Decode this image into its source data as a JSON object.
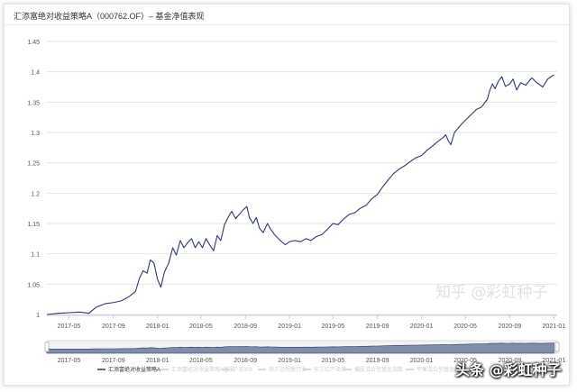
{
  "window": {
    "title": "汇添富绝对收益策略A（000762.OF）– 基金净值表现"
  },
  "colors": {
    "line": "#2d3b6b",
    "grid": "#e6e6e6",
    "axis": "#999999",
    "navigator_fill": "#5a6b8c",
    "navigator_bg": "#f2f2f2"
  },
  "chart_data": {
    "type": "line",
    "title": "汇添富绝对收益策略A（000762.OF）– 基金净值表现",
    "xlabel": "",
    "ylabel": "",
    "grid": "horizontal",
    "ylim": [
      1,
      1.45
    ],
    "yticks": [
      "1",
      "1.05",
      "1.1",
      "1.15",
      "1.2",
      "1.25",
      "1.3",
      "1.35",
      "1.4",
      "1.45"
    ],
    "xticks": [
      "2017-05",
      "2017-09",
      "2018-01",
      "2018-05",
      "2018-09",
      "2019-01",
      "2019-05",
      "2019-09",
      "2020-01",
      "2020-05",
      "2020-09",
      "2021-01"
    ],
    "legend_position": "bottom",
    "series": [
      {
        "name": "汇添富绝对收益策略A",
        "color": "#2d3b6b",
        "points": [
          [
            "2017-03-01",
            1.0
          ],
          [
            "2017-04-01",
            1.002
          ],
          [
            "2017-05-01",
            1.003
          ],
          [
            "2017-06-01",
            1.004
          ],
          [
            "2017-06-25",
            1.002
          ],
          [
            "2017-07-15",
            1.012
          ],
          [
            "2017-08-10",
            1.018
          ],
          [
            "2017-09-05",
            1.02
          ],
          [
            "2017-09-25",
            1.023
          ],
          [
            "2017-10-15",
            1.03
          ],
          [
            "2017-11-01",
            1.038
          ],
          [
            "2017-11-12",
            1.06
          ],
          [
            "2017-11-22",
            1.072
          ],
          [
            "2017-12-03",
            1.068
          ],
          [
            "2017-12-12",
            1.09
          ],
          [
            "2017-12-22",
            1.085
          ],
          [
            "2018-01-01",
            1.058
          ],
          [
            "2018-01-10",
            1.045
          ],
          [
            "2018-01-20",
            1.07
          ],
          [
            "2018-02-01",
            1.085
          ],
          [
            "2018-02-12",
            1.11
          ],
          [
            "2018-02-22",
            1.098
          ],
          [
            "2018-03-05",
            1.122
          ],
          [
            "2018-03-15",
            1.11
          ],
          [
            "2018-03-25",
            1.118
          ],
          [
            "2018-04-05",
            1.125
          ],
          [
            "2018-04-15",
            1.11
          ],
          [
            "2018-04-25",
            1.12
          ],
          [
            "2018-05-05",
            1.11
          ],
          [
            "2018-05-15",
            1.125
          ],
          [
            "2018-05-25",
            1.115
          ],
          [
            "2018-06-05",
            1.105
          ],
          [
            "2018-06-15",
            1.13
          ],
          [
            "2018-06-25",
            1.122
          ],
          [
            "2018-07-05",
            1.148
          ],
          [
            "2018-07-15",
            1.16
          ],
          [
            "2018-07-25",
            1.17
          ],
          [
            "2018-08-05",
            1.158
          ],
          [
            "2018-08-15",
            1.165
          ],
          [
            "2018-08-25",
            1.172
          ],
          [
            "2018-09-05",
            1.178
          ],
          [
            "2018-09-12",
            1.16
          ],
          [
            "2018-09-22",
            1.15
          ],
          [
            "2018-10-01",
            1.16
          ],
          [
            "2018-10-10",
            1.142
          ],
          [
            "2018-10-20",
            1.135
          ],
          [
            "2018-11-01",
            1.15
          ],
          [
            "2018-11-10",
            1.14
          ],
          [
            "2018-11-20",
            1.132
          ],
          [
            "2018-12-01",
            1.125
          ],
          [
            "2018-12-10",
            1.12
          ],
          [
            "2018-12-20",
            1.115
          ],
          [
            "2019-01-01",
            1.12
          ],
          [
            "2019-01-15",
            1.122
          ],
          [
            "2019-02-01",
            1.12
          ],
          [
            "2019-02-15",
            1.125
          ],
          [
            "2019-03-01",
            1.122
          ],
          [
            "2019-03-15",
            1.128
          ],
          [
            "2019-04-01",
            1.132
          ],
          [
            "2019-04-15",
            1.14
          ],
          [
            "2019-05-01",
            1.15
          ],
          [
            "2019-05-15",
            1.148
          ],
          [
            "2019-06-01",
            1.158
          ],
          [
            "2019-06-15",
            1.165
          ],
          [
            "2019-07-01",
            1.168
          ],
          [
            "2019-07-15",
            1.175
          ],
          [
            "2019-08-01",
            1.18
          ],
          [
            "2019-08-15",
            1.19
          ],
          [
            "2019-09-01",
            1.198
          ],
          [
            "2019-09-15",
            1.21
          ],
          [
            "2019-10-01",
            1.222
          ],
          [
            "2019-10-15",
            1.232
          ],
          [
            "2019-11-01",
            1.24
          ],
          [
            "2019-11-15",
            1.245
          ],
          [
            "2019-12-01",
            1.252
          ],
          [
            "2019-12-15",
            1.258
          ],
          [
            "2020-01-01",
            1.262
          ],
          [
            "2020-01-15",
            1.27
          ],
          [
            "2020-02-01",
            1.278
          ],
          [
            "2020-02-15",
            1.285
          ],
          [
            "2020-03-01",
            1.292
          ],
          [
            "2020-03-08",
            1.296
          ],
          [
            "2020-03-15",
            1.286
          ],
          [
            "2020-03-22",
            1.28
          ],
          [
            "2020-04-01",
            1.3
          ],
          [
            "2020-04-15",
            1.31
          ],
          [
            "2020-05-01",
            1.32
          ],
          [
            "2020-05-15",
            1.328
          ],
          [
            "2020-06-01",
            1.338
          ],
          [
            "2020-06-15",
            1.342
          ],
          [
            "2020-07-01",
            1.355
          ],
          [
            "2020-07-08",
            1.37
          ],
          [
            "2020-07-15",
            1.38
          ],
          [
            "2020-07-22",
            1.372
          ],
          [
            "2020-08-01",
            1.385
          ],
          [
            "2020-08-10",
            1.392
          ],
          [
            "2020-08-20",
            1.376
          ],
          [
            "2020-09-01",
            1.38
          ],
          [
            "2020-09-10",
            1.388
          ],
          [
            "2020-09-20",
            1.37
          ],
          [
            "2020-10-01",
            1.382
          ],
          [
            "2020-10-15",
            1.378
          ],
          [
            "2020-11-01",
            1.39
          ],
          [
            "2020-11-15",
            1.382
          ],
          [
            "2020-12-01",
            1.375
          ],
          [
            "2020-12-15",
            1.388
          ],
          [
            "2021-01-01",
            1.395
          ]
        ]
      }
    ],
    "legend": [
      {
        "label": "汇添富绝对收益策略A",
        "active": true
      },
      {
        "label": "汇添富绝对收益策略A基准",
        "active": false
      },
      {
        "label": "沪深300",
        "active": false
      },
      {
        "label": "南方远程债行业",
        "active": false
      },
      {
        "label": "东方红产业库",
        "active": false
      },
      {
        "label": "偏股混合型基金指数",
        "active": false
      },
      {
        "label": "平衡混合型基金指数",
        "active": false
      }
    ]
  },
  "watermarks": {
    "faint": "知乎 @彩虹种子",
    "strong": "头条 @彩虹种子"
  }
}
